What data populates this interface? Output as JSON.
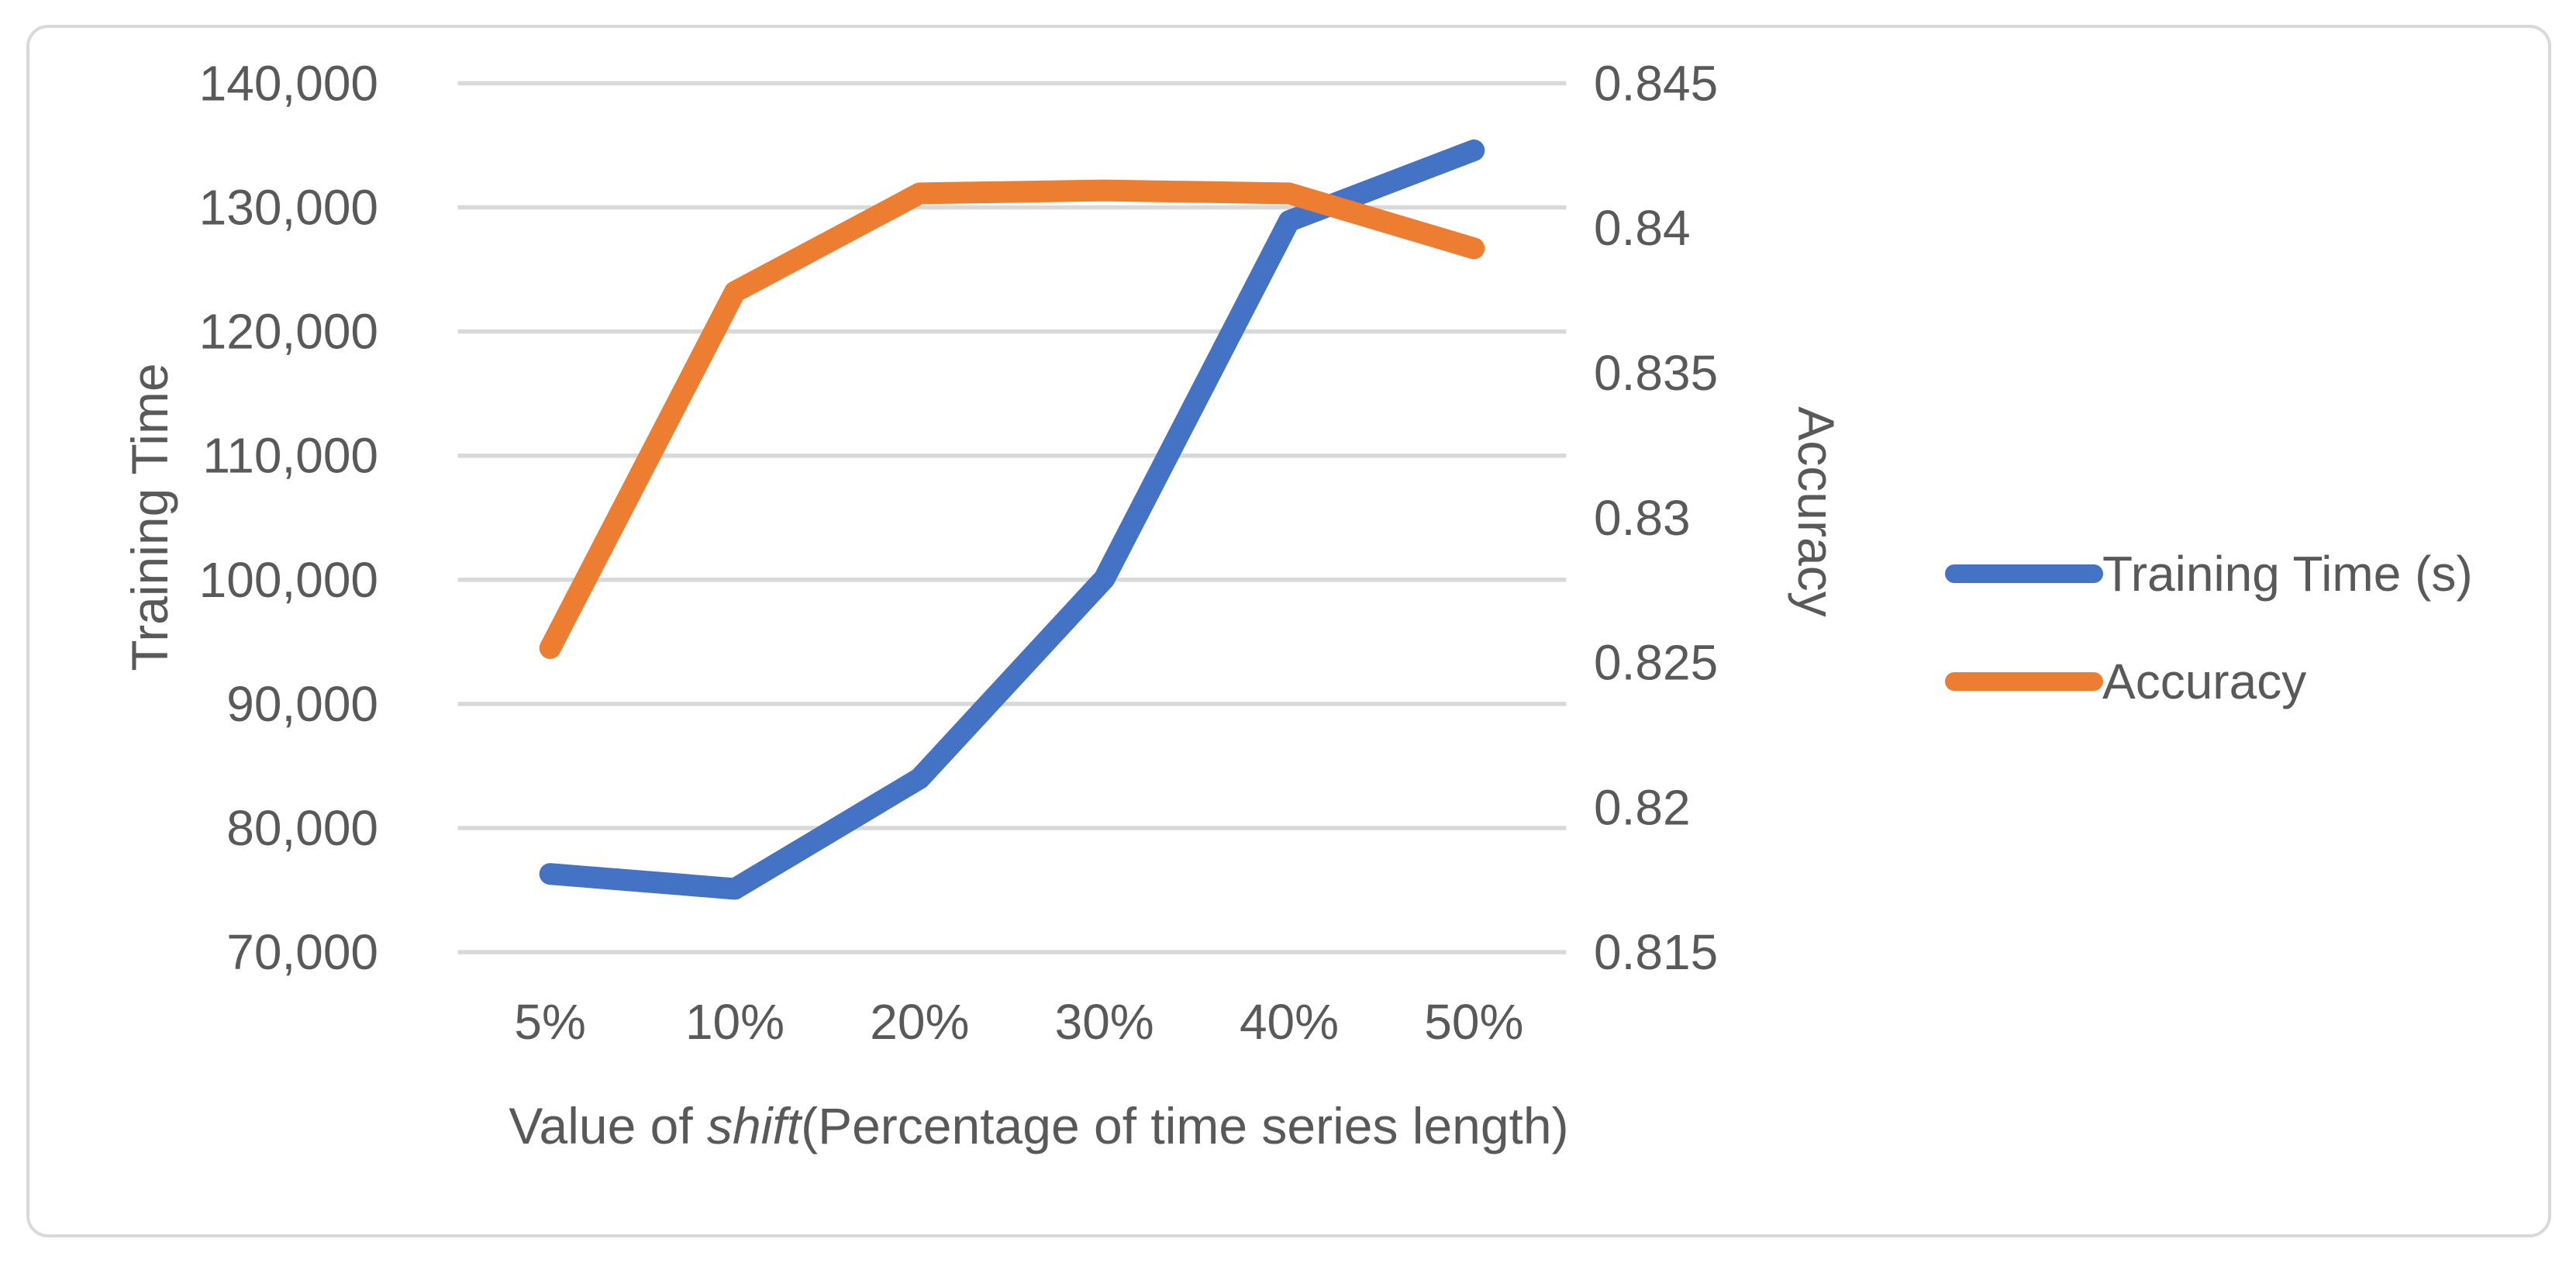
{
  "chart_data": {
    "type": "line",
    "title": "",
    "categories": [
      "5%",
      "10%",
      "20%",
      "30%",
      "40%",
      "50%"
    ],
    "series": [
      {
        "name": "Training Time (s)",
        "yaxis": "left",
        "color": "#4472C4",
        "values": [
          76300,
          75100,
          84000,
          100100,
          128900,
          134600
        ]
      },
      {
        "name": "Accuracy",
        "yaxis": "right",
        "color": "#ED7D31",
        "values": [
          0.8255,
          0.8378,
          0.8412,
          0.8413,
          0.8412,
          0.8393
        ]
      }
    ],
    "xlabel": {
      "prefix": "Value of ",
      "italic": "shift",
      "suffix": "(Percentage of time series length)"
    },
    "left_axis": {
      "title": "Training Time",
      "min": 70000,
      "max": 140000,
      "step": 10000,
      "tick_labels": [
        "140,000",
        "130,000",
        "120,000",
        "110,000",
        "100,000",
        "90,000",
        "80,000",
        "70,000"
      ]
    },
    "right_axis": {
      "title": "Accuracy",
      "min": 0.815,
      "max": 0.845,
      "step": 0.005,
      "tick_labels": [
        "0.845",
        "0.84",
        "0.835",
        "0.83",
        "0.825",
        "0.82",
        "0.815"
      ]
    },
    "legend": {
      "position": "right",
      "entries": [
        "Training Time (s)",
        "Accuracy"
      ]
    },
    "grid": true,
    "colors": {
      "blue": "#4472C4",
      "orange": "#ED7D31",
      "gridline": "#D9D9D9",
      "border": "#D9D9D9",
      "text": "#595959",
      "background": "#FFFFFF"
    }
  }
}
